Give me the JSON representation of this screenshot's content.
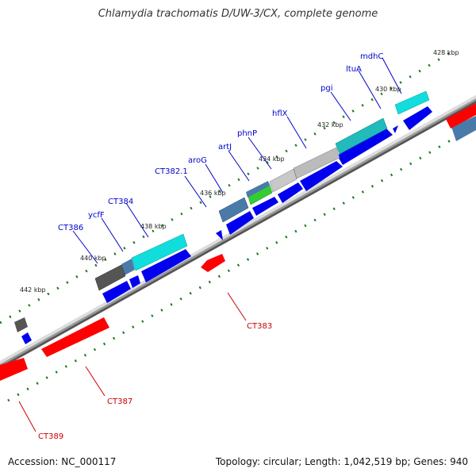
{
  "title": "Chlamydia trachomatis D/UW-3/CX, complete genome",
  "accession": "Accession: NC_000117",
  "summary": "Topology: circular; Length: 1,042,519 bp; Genes: 940",
  "kbp_labels": [
    "428 kbp",
    "430 kbp",
    "432 kbp",
    "434 kbp",
    "436 kbp",
    "438 kbp",
    "440 kbp",
    "442 kbp"
  ],
  "gene_labels_blue": [
    "mdhC",
    "ltuA",
    "pgi",
    "hflX",
    "phnP",
    "artJ",
    "aroG",
    "CT382.1",
    "CT384",
    "ycfF",
    "CT386"
  ],
  "gene_labels_red": [
    "CT383",
    "CT387",
    "CT389"
  ],
  "colors": {
    "forward": "#0000ee",
    "reverse": "#ff0000",
    "backbone": "#888888",
    "tick": "#1a7a1a",
    "cyan": "#11dddd",
    "steel": "#4a7aa8",
    "gray": "#bbbbbb",
    "dark": "#555555",
    "green": "#33cc33",
    "label_blue": "#0000cc",
    "label_red": "#cc0000"
  }
}
